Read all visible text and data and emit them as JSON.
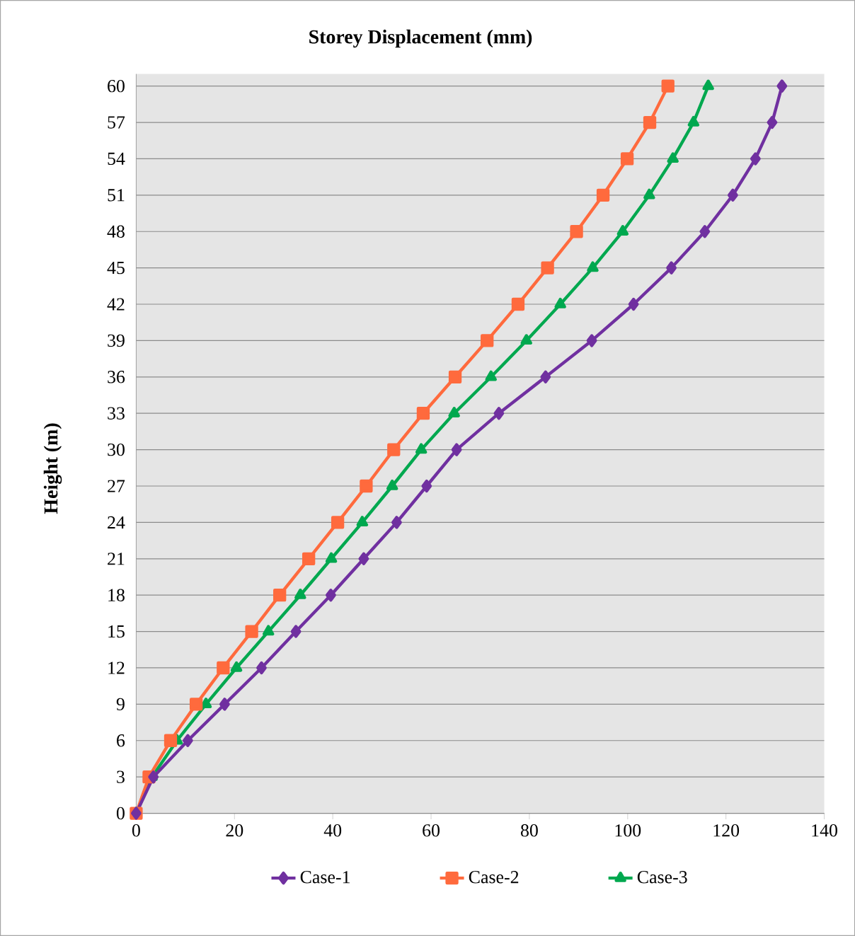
{
  "chart_data": {
    "type": "line",
    "title": "Storey Displacement (mm)",
    "ylabel": "Height  (m)",
    "xlim": [
      0,
      140
    ],
    "xticks": [
      0,
      20,
      40,
      60,
      80,
      100,
      120,
      140
    ],
    "ylim": [
      0,
      61
    ],
    "yticks": [
      0,
      3,
      6,
      9,
      12,
      15,
      18,
      21,
      24,
      27,
      30,
      33,
      36,
      39,
      42,
      45,
      48,
      51,
      54,
      57,
      60
    ],
    "grid": "y",
    "legend": "bottom",
    "line_style": "solid",
    "series": [
      {
        "name": "Case-1",
        "color": "#7030a0",
        "marker": "diamond",
        "x": [
          0,
          3.5,
          10.5,
          18,
          25.5,
          32.5,
          39.6,
          46.3,
          53,
          59.1,
          65.2,
          73.8,
          83.3,
          92.7,
          101.2,
          108.9,
          115.7,
          121.4,
          126,
          129.4,
          131.4
        ],
        "values": [
          0,
          3,
          6,
          9,
          12,
          15,
          18,
          21,
          24,
          27,
          30,
          33,
          36,
          39,
          42,
          45,
          48,
          51,
          54,
          57,
          60
        ]
      },
      {
        "name": "Case-2",
        "color": "#ff6a3d",
        "marker": "square",
        "x": [
          0,
          2.6,
          7,
          12.2,
          17.7,
          23.5,
          29.2,
          35.1,
          41,
          46.8,
          52.4,
          58.4,
          64.9,
          71.4,
          77.7,
          83.7,
          89.6,
          95,
          99.9,
          104.5,
          108.2
        ],
        "values": [
          0,
          3,
          6,
          9,
          12,
          15,
          18,
          21,
          24,
          27,
          30,
          33,
          36,
          39,
          42,
          45,
          48,
          51,
          54,
          57,
          60
        ]
      },
      {
        "name": "Case-3",
        "color": "#00a84f",
        "marker": "triangle",
        "x": [
          0,
          3.2,
          8.3,
          14.2,
          20.4,
          26.9,
          33.4,
          39.7,
          46,
          52.1,
          58,
          64.7,
          72.2,
          79.4,
          86.3,
          92.9,
          99,
          104.4,
          109.2,
          113.4,
          116.4
        ],
        "values": [
          0,
          3,
          6,
          9,
          12,
          15,
          18,
          21,
          24,
          27,
          30,
          33,
          36,
          39,
          42,
          45,
          48,
          51,
          54,
          57,
          60
        ]
      }
    ]
  }
}
